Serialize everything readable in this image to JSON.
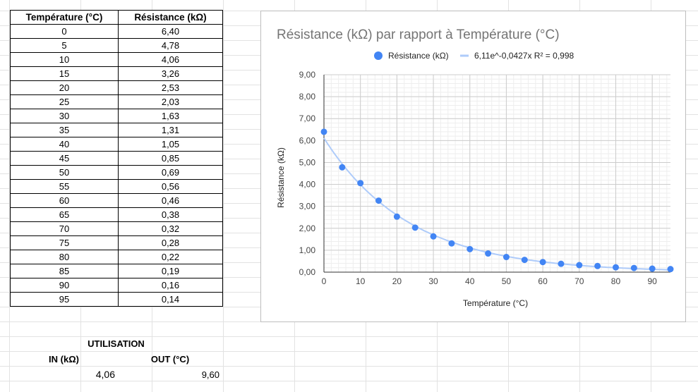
{
  "table": {
    "headers": [
      "Température (°C)",
      "Résistance (kΩ)"
    ],
    "rows": [
      [
        "0",
        "6,40"
      ],
      [
        "5",
        "4,78"
      ],
      [
        "10",
        "4,06"
      ],
      [
        "15",
        "3,26"
      ],
      [
        "20",
        "2,53"
      ],
      [
        "25",
        "2,03"
      ],
      [
        "30",
        "1,63"
      ],
      [
        "35",
        "1,31"
      ],
      [
        "40",
        "1,05"
      ],
      [
        "45",
        "0,85"
      ],
      [
        "50",
        "0,69"
      ],
      [
        "55",
        "0,56"
      ],
      [
        "60",
        "0,46"
      ],
      [
        "65",
        "0,38"
      ],
      [
        "70",
        "0,32"
      ],
      [
        "75",
        "0,28"
      ],
      [
        "80",
        "0,22"
      ],
      [
        "85",
        "0,19"
      ],
      [
        "90",
        "0,16"
      ],
      [
        "95",
        "0,14"
      ]
    ]
  },
  "utilisation": {
    "title": "UTILISATION",
    "in_label": "IN (kΩ)",
    "out_label": "OUT (°C)",
    "in_value": "4,06",
    "out_value": "9,60"
  },
  "chart_data": {
    "type": "scatter",
    "title": "Résistance (kΩ) par rapport à Température (°C)",
    "xlabel": "Température (°C)",
    "ylabel": "Résistance (kΩ)",
    "xlim": [
      0,
      95
    ],
    "ylim": [
      0,
      9
    ],
    "x_ticks": [
      "0",
      "10",
      "20",
      "30",
      "40",
      "50",
      "60",
      "70",
      "80",
      "90"
    ],
    "x_tick_values": [
      0,
      10,
      20,
      30,
      40,
      50,
      60,
      70,
      80,
      90
    ],
    "y_ticks": [
      "0,00",
      "1,00",
      "2,00",
      "3,00",
      "4,00",
      "5,00",
      "6,00",
      "7,00",
      "8,00",
      "9,00"
    ],
    "y_tick_values": [
      0,
      1,
      2,
      3,
      4,
      5,
      6,
      7,
      8,
      9
    ],
    "grid": true,
    "legend_position": "top",
    "series": [
      {
        "name": "Résistance (kΩ)",
        "color": "#4285f4",
        "x": [
          0,
          5,
          10,
          15,
          20,
          25,
          30,
          35,
          40,
          45,
          50,
          55,
          60,
          65,
          70,
          75,
          80,
          85,
          90,
          95
        ],
        "y": [
          6.4,
          4.78,
          4.06,
          3.26,
          2.53,
          2.03,
          1.63,
          1.31,
          1.05,
          0.85,
          0.69,
          0.56,
          0.46,
          0.38,
          0.32,
          0.28,
          0.22,
          0.19,
          0.16,
          0.14
        ]
      }
    ],
    "trendline": {
      "name": "6,11e^-0,0427x R² = 0,998",
      "color": "#aecbfa",
      "a": 6.11,
      "b": -0.0427
    }
  }
}
